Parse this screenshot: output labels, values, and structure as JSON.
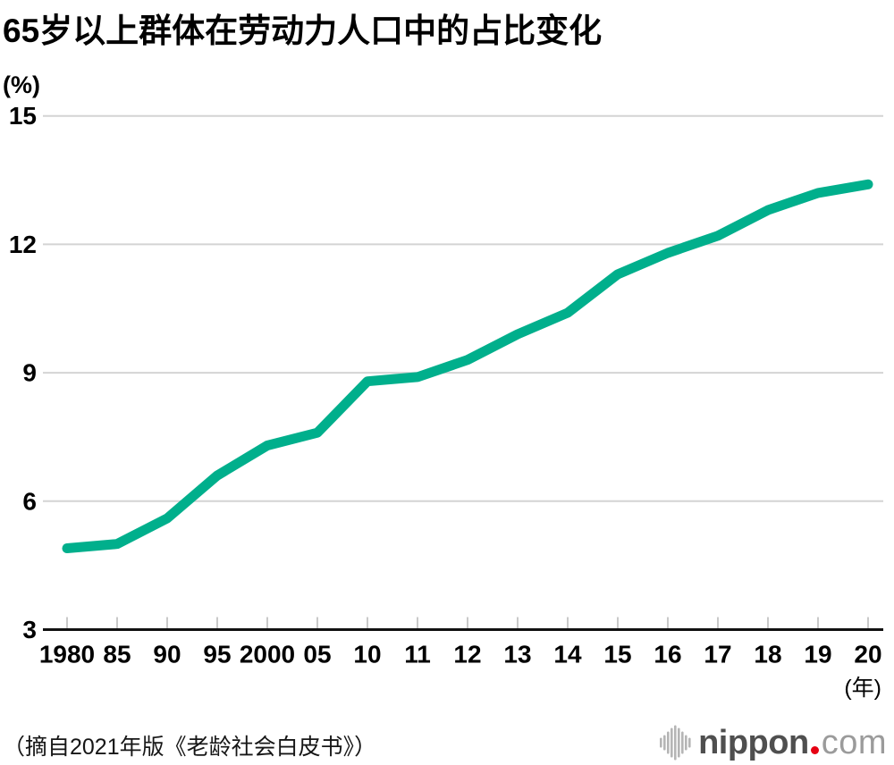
{
  "title": "65岁以上群体在劳动力人口中的占比变化",
  "chart_data": {
    "type": "line",
    "title": "65岁以上群体在劳动力人口中的占比变化",
    "x_categories": [
      "1980",
      "85",
      "90",
      "95",
      "2000",
      "05",
      "10",
      "11",
      "12",
      "13",
      "14",
      "15",
      "16",
      "17",
      "18",
      "19",
      "20"
    ],
    "series": [
      {
        "name": "65岁以上群体在劳动力人口中的占比",
        "values": [
          4.9,
          5.0,
          5.6,
          6.6,
          7.3,
          7.6,
          8.8,
          8.9,
          9.3,
          9.9,
          10.4,
          11.3,
          11.8,
          12.2,
          12.8,
          13.2,
          13.4
        ]
      }
    ],
    "y_axis_unit": "(%)",
    "x_axis_unit": "(年)",
    "y_ticks": [
      3,
      6,
      9,
      12,
      15
    ],
    "ylim": [
      3,
      15
    ],
    "grid": "horizontal",
    "legend": "none",
    "line_color": "#00af8c",
    "gridline_color": "#d4d4d4",
    "axis_color": "#111111",
    "tick_color": "#c9c9c9",
    "label_color": "#000000"
  },
  "source_note": "（摘自2021年版《老龄社会白皮书》）",
  "logo": {
    "icon": "waveform-icon",
    "text_primary": "nippon",
    "text_secondary": "com",
    "dot_color": "#e60012",
    "icon_color": "#b5b5b5",
    "primary_color": "#4f4f4f",
    "secondary_color": "#9b9b9b"
  }
}
